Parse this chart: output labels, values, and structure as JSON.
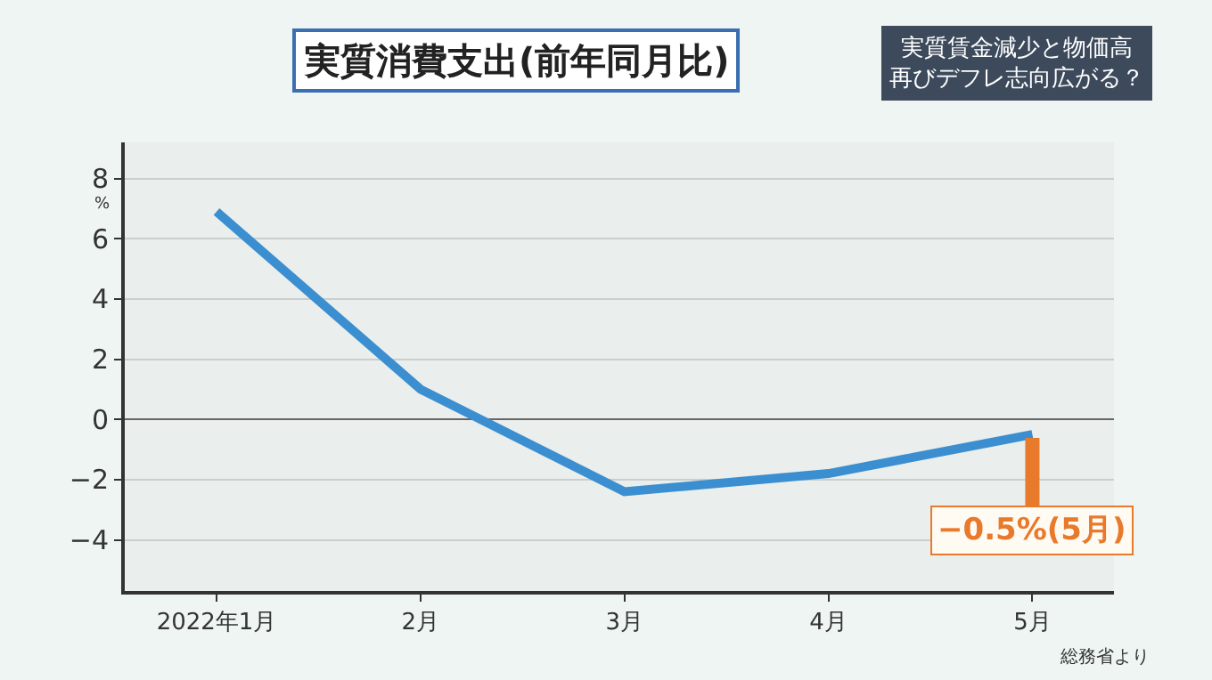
{
  "chart_data": {
    "type": "line",
    "title": "実質消費支出(前年同月比)",
    "subtitle": "実質賃金減少と物価高再びデフレ志向広がる？",
    "ylabel": "%",
    "categories": [
      "2022年1月",
      "2月",
      "3月",
      "4月",
      "5月"
    ],
    "series": [
      {
        "color": "#3b8fd0",
        "values": [
          6.9,
          1.0,
          -2.4,
          -1.8,
          -0.5
        ]
      }
    ],
    "ylim": [
      -5.7,
      9.2
    ],
    "yticks": [
      -4,
      -2,
      0,
      2,
      4,
      6,
      8
    ],
    "grid": "y",
    "marker": "none",
    "line_style": "solid",
    "annotations": [
      {
        "text": "−0.5%(5月)",
        "x": "5月",
        "y": -0.5
      },
      "総務省より"
    ]
  }
}
